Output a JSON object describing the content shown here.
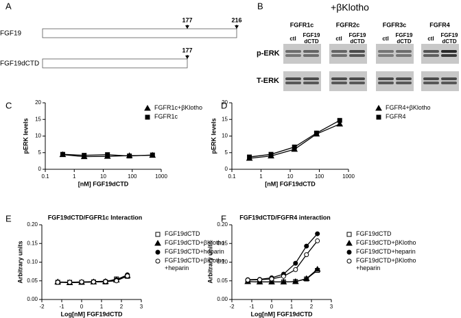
{
  "diagram_a": {
    "label": "A",
    "rows": [
      {
        "name": "FGF19",
        "markers": [
          177,
          216
        ]
      },
      {
        "name": "FGF19dCTD",
        "markers": [
          177
        ]
      }
    ]
  },
  "blot_b": {
    "label": "B",
    "header": "+βKlotho",
    "groups": [
      "FGFR1c",
      "FGFR2c",
      "FGFR3c",
      "FGFR4"
    ],
    "lanes": [
      "ctl",
      "FGF19 dCTD"
    ],
    "rows": [
      "p-ERK",
      "T-ERK"
    ]
  },
  "chart_data": [
    {
      "type": "line",
      "panel": "C",
      "xlabel": "[nM] FGF19dCTD",
      "ylabel": "pERK levels",
      "xscale": "log",
      "x": [
        0.4,
        2.2,
        14,
        80,
        500
      ],
      "xlim": [
        0.1,
        1000
      ],
      "xticks": [
        0.1,
        1,
        10,
        100,
        1000
      ],
      "ylim": [
        0,
        20
      ],
      "yticks": [
        0,
        5,
        10,
        15,
        20
      ],
      "legend": "top-right",
      "series": [
        {
          "name": "FGFR1c+βKlotho",
          "color": "#000",
          "marker": "triangle",
          "filled": true,
          "values": [
            4.4,
            3.8,
            3.9,
            4.1,
            4.2
          ]
        },
        {
          "name": "FGFR1c",
          "color": "#000",
          "marker": "square",
          "filled": true,
          "values": [
            4.5,
            4.2,
            4.4,
            4.0,
            4.3
          ]
        }
      ]
    },
    {
      "type": "line",
      "panel": "D",
      "xlabel": "[nM] FGF19dCTD",
      "ylabel": "pERK levels",
      "xscale": "log",
      "x": [
        0.4,
        2.2,
        14,
        80,
        500
      ],
      "xlim": [
        0.1,
        1000
      ],
      "xticks": [
        0.1,
        1,
        10,
        100,
        1000
      ],
      "ylim": [
        0,
        20
      ],
      "yticks": [
        0,
        5,
        10,
        15,
        20
      ],
      "legend": "top-right",
      "series": [
        {
          "name": "FGFR4+βKlotho",
          "color": "#000",
          "marker": "triangle",
          "filled": true,
          "values": [
            3.3,
            4.0,
            6.0,
            10.6,
            13.6
          ]
        },
        {
          "name": "FGFR4",
          "color": "#000",
          "marker": "square",
          "filled": true,
          "values": [
            3.7,
            4.5,
            6.7,
            10.9,
            14.7
          ]
        }
      ]
    },
    {
      "type": "line",
      "panel": "E",
      "title": "FGF19dCTD/FGFR1c Interaction",
      "xlabel": "Log[nM] FGF19dCTD",
      "ylabel": "Arbitrary units",
      "x": [
        -1.2,
        -0.6,
        0,
        0.6,
        1.2,
        1.75,
        2.3
      ],
      "xlim": [
        -2,
        3
      ],
      "xticks": [
        -2,
        -1,
        0,
        1,
        2,
        3
      ],
      "ylim": [
        0,
        0.2
      ],
      "yticks": [
        {
          "value": 0,
          "label": "0.00"
        },
        {
          "value": 0.05,
          "label": "0.05"
        },
        {
          "value": 0.1,
          "label": "0.10"
        },
        {
          "value": 0.15,
          "label": "0.15"
        },
        {
          "value": 0.2,
          "label": "0.20"
        }
      ],
      "legend": "outside-right",
      "series": [
        {
          "name": "FGF19dCTD",
          "color": "#000",
          "marker": "square",
          "filled": false,
          "values": [
            0.046,
            0.046,
            0.046,
            0.047,
            0.047,
            0.055,
            0.062
          ]
        },
        {
          "name": "FGF19dCTD+βKlotho",
          "color": "#000",
          "marker": "triangle",
          "filled": true,
          "values": [
            0.047,
            0.045,
            0.046,
            0.047,
            0.048,
            0.052,
            0.064
          ]
        },
        {
          "name": "FGF19dCTD+heparin",
          "color": "#000",
          "marker": "circle",
          "filled": true,
          "values": [
            0.047,
            0.046,
            0.047,
            0.048,
            0.049,
            0.053,
            0.066
          ]
        },
        {
          "name": "FGF19dCTD+βKlotho +heparin",
          "color": "#000",
          "marker": "circle",
          "filled": false,
          "values": [
            0.046,
            0.046,
            0.047,
            0.047,
            0.048,
            0.05,
            0.063
          ]
        }
      ]
    },
    {
      "type": "line",
      "panel": "F",
      "title": "FGF19dCTD/FGFR4 interaction",
      "xlabel": "Log[nM] FGF19dCTD",
      "ylabel": "Arbitrary units",
      "x": [
        -1.2,
        -0.6,
        0,
        0.6,
        1.2,
        1.75,
        2.3
      ],
      "xlim": [
        -2,
        3
      ],
      "xticks": [
        -2,
        -1,
        0,
        1,
        2,
        3
      ],
      "ylim": [
        0,
        0.2
      ],
      "yticks": [
        {
          "value": 0,
          "label": "0.00"
        },
        {
          "value": 0.05,
          "label": "0.05"
        },
        {
          "value": 0.1,
          "label": "0.10"
        },
        {
          "value": 0.15,
          "label": "0.15"
        },
        {
          "value": 0.2,
          "label": "0.20"
        }
      ],
      "legend": "outside-right",
      "series": [
        {
          "name": "FGF19dCTD",
          "color": "#000",
          "marker": "square",
          "filled": false,
          "values": [
            0.048,
            0.047,
            0.047,
            0.047,
            0.048,
            0.055,
            0.078
          ]
        },
        {
          "name": "FGF19dCTD+βKlotho",
          "color": "#000",
          "marker": "triangle",
          "filled": true,
          "values": [
            0.048,
            0.047,
            0.047,
            0.047,
            0.048,
            0.056,
            0.081
          ]
        },
        {
          "name": "FGF19dCTD+heparin",
          "color": "#000",
          "marker": "circle",
          "filled": true,
          "values": [
            0.053,
            0.054,
            0.058,
            0.068,
            0.097,
            0.143,
            0.176
          ]
        },
        {
          "name": "FGF19dCTD+βKlotho +heparin",
          "color": "#000",
          "marker": "circle",
          "filled": false,
          "values": [
            0.052,
            0.053,
            0.055,
            0.062,
            0.08,
            0.12,
            0.157
          ]
        }
      ]
    }
  ]
}
